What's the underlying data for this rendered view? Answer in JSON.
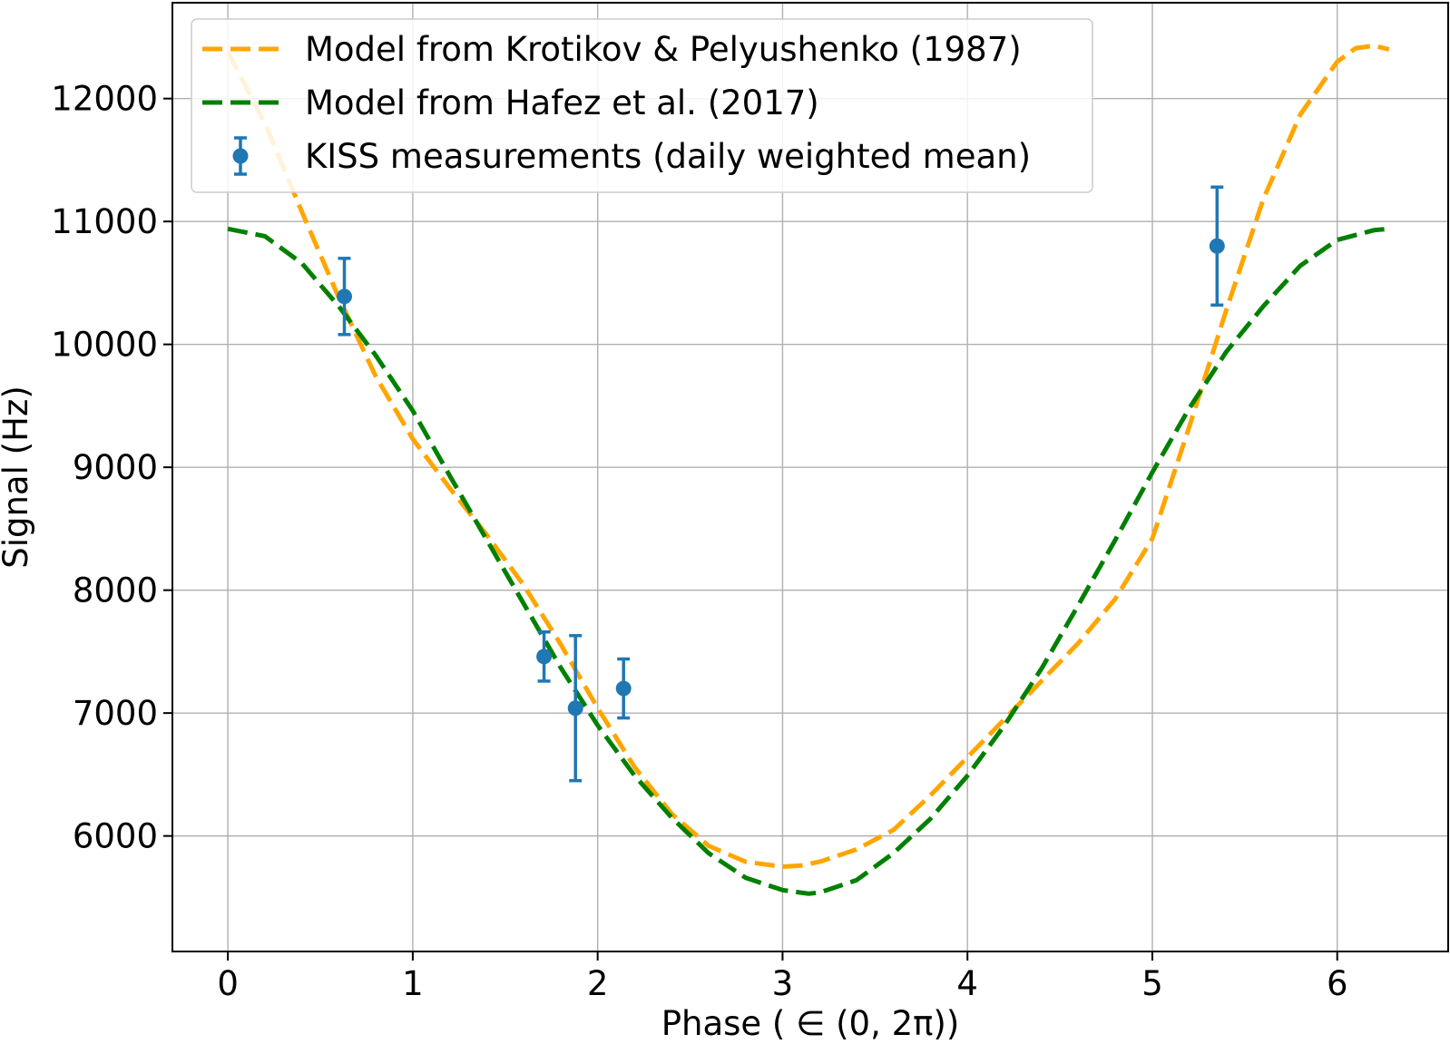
{
  "chart_data": {
    "type": "line",
    "title": "",
    "xlabel": "Phase ($\\in (0, 2\\pi)$)",
    "xlabel_display": "Phase ( ∈ (0, 2π))",
    "ylabel": "Signal (Hz)",
    "xlim": [
      -0.3,
      6.6
    ],
    "ylim": [
      5060,
      12780
    ],
    "xticks": [
      0,
      1,
      2,
      3,
      4,
      5,
      6
    ],
    "xtick_labels": [
      "0",
      "1",
      "2",
      "3",
      "4",
      "5",
      "6"
    ],
    "yticks": [
      6000,
      7000,
      8000,
      9000,
      10000,
      11000,
      12000
    ],
    "ytick_labels": [
      "6000",
      "7000",
      "8000",
      "9000",
      "10000",
      "11000",
      "12000"
    ],
    "grid": true,
    "legend_position": "upper-left",
    "series": [
      {
        "name": "Model from Krotikov & Pelyushenko (1987)",
        "style": "dashed",
        "color": "#FFA500",
        "x": [
          0.0,
          0.2,
          0.4,
          0.6,
          0.8,
          1.0,
          1.2,
          1.4,
          1.6,
          1.8,
          2.0,
          2.2,
          2.4,
          2.6,
          2.8,
          3.0,
          3.1,
          3.2,
          3.4,
          3.6,
          3.8,
          4.0,
          4.2,
          4.4,
          4.6,
          4.8,
          5.0,
          5.2,
          5.4,
          5.6,
          5.8,
          6.0,
          6.1,
          6.2,
          6.28
        ],
        "y": [
          12380,
          11800,
          11080,
          10380,
          9740,
          9230,
          8830,
          8450,
          8040,
          7560,
          7040,
          6560,
          6180,
          5920,
          5790,
          5750,
          5760,
          5790,
          5890,
          6050,
          6330,
          6640,
          6950,
          7260,
          7570,
          7930,
          8420,
          9330,
          10280,
          11180,
          11870,
          12300,
          12410,
          12430,
          12400
        ]
      },
      {
        "name": "Model from Hafez et al. (2017)",
        "style": "dashed",
        "color": "#008000",
        "x": [
          0.0,
          0.2,
          0.4,
          0.6,
          0.8,
          1.0,
          1.2,
          1.4,
          1.6,
          1.8,
          2.0,
          2.2,
          2.4,
          2.6,
          2.8,
          3.0,
          3.14,
          3.2,
          3.4,
          3.6,
          3.8,
          4.0,
          4.2,
          4.4,
          4.6,
          4.8,
          5.0,
          5.2,
          5.4,
          5.6,
          5.8,
          6.0,
          6.2,
          6.28
        ],
        "y": [
          10940,
          10880,
          10660,
          10310,
          9910,
          9460,
          8930,
          8410,
          7890,
          7370,
          6900,
          6490,
          6150,
          5860,
          5660,
          5560,
          5530,
          5540,
          5640,
          5860,
          6140,
          6490,
          6900,
          7360,
          7880,
          8410,
          8960,
          9480,
          9940,
          10310,
          10640,
          10850,
          10930,
          10940
        ]
      },
      {
        "name": "KISS measurements (daily weighted mean)",
        "style": "errorbar",
        "color": "#1F77B4",
        "x": [
          0.63,
          1.71,
          1.88,
          2.14,
          5.35
        ],
        "y": [
          10390,
          7460,
          7040,
          7200,
          10800
        ],
        "yerr": [
          310,
          200,
          590,
          240,
          480
        ]
      }
    ]
  }
}
